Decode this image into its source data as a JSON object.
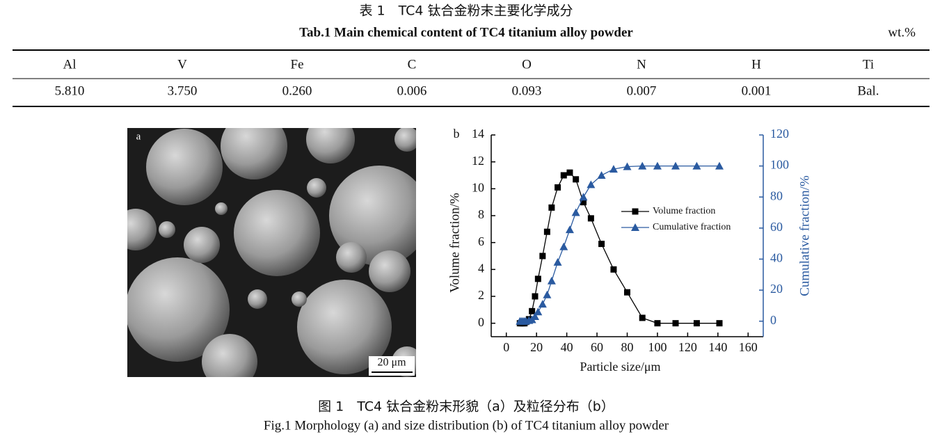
{
  "table": {
    "title_cn": "表 1　TC4 钛合金粉末主要化学成分",
    "title_en": "Tab.1 Main chemical content of TC4 titanium alloy powder",
    "unit": "wt.%",
    "header": [
      "Al",
      "V",
      "Fe",
      "C",
      "O",
      "N",
      "H",
      "Ti"
    ],
    "rows": [
      [
        "5.810",
        "3.750",
        "0.260",
        "0.006",
        "0.093",
        "0.007",
        "0.001",
        "Bal."
      ]
    ]
  },
  "panel_a": {
    "label": "a",
    "scale_bar": "20 μm"
  },
  "chart_data": {
    "type": "line",
    "label": "b",
    "xlabel": "Particle size/μm",
    "ylabel": "Volume fraction/%",
    "y2label": "Cumulative fraction/%",
    "x": [
      9,
      10,
      11,
      12,
      13,
      15,
      17,
      19,
      21,
      24,
      27,
      30,
      34,
      38,
      42,
      46,
      51,
      56,
      63,
      71,
      80,
      90,
      100,
      112,
      126,
      141
    ],
    "xlim": [
      -10,
      170
    ],
    "xticks": [
      0,
      20,
      40,
      60,
      80,
      100,
      120,
      140,
      160
    ],
    "ylim": [
      -1,
      14
    ],
    "yticks": [
      0,
      2,
      4,
      6,
      8,
      10,
      12,
      14
    ],
    "y2lim": [
      -10,
      120
    ],
    "y2ticks": [
      0,
      20,
      40,
      60,
      80,
      100,
      120
    ],
    "y2color": "#2a5aa0",
    "legend": "center right",
    "series": [
      {
        "name": "Volume fraction",
        "color": "#000000",
        "marker": "square",
        "values": [
          0,
          0,
          0,
          0,
          0.1,
          0.3,
          0.9,
          2.0,
          3.3,
          5.0,
          6.8,
          8.6,
          10.1,
          11.0,
          11.2,
          10.7,
          9.0,
          7.8,
          5.9,
          4.0,
          2.3,
          0.4,
          0,
          0,
          0,
          0
        ]
      },
      {
        "name": "Cumulative fraction",
        "color": "#2a5aa0",
        "marker": "triangle",
        "axis": "y2",
        "values": [
          0,
          0,
          0,
          0,
          0.1,
          0.5,
          1,
          3,
          6,
          11,
          17,
          26,
          38,
          48,
          59,
          70,
          80,
          88,
          94,
          98,
          99.6,
          100,
          100,
          100,
          100,
          100
        ]
      }
    ]
  },
  "caption": {
    "cn": "图 1　TC4 钛合金粉末形貌（a）及粒径分布（b）",
    "en": "Fig.1 Morphology (a) and size distribution (b) of TC4 titanium alloy powder"
  }
}
